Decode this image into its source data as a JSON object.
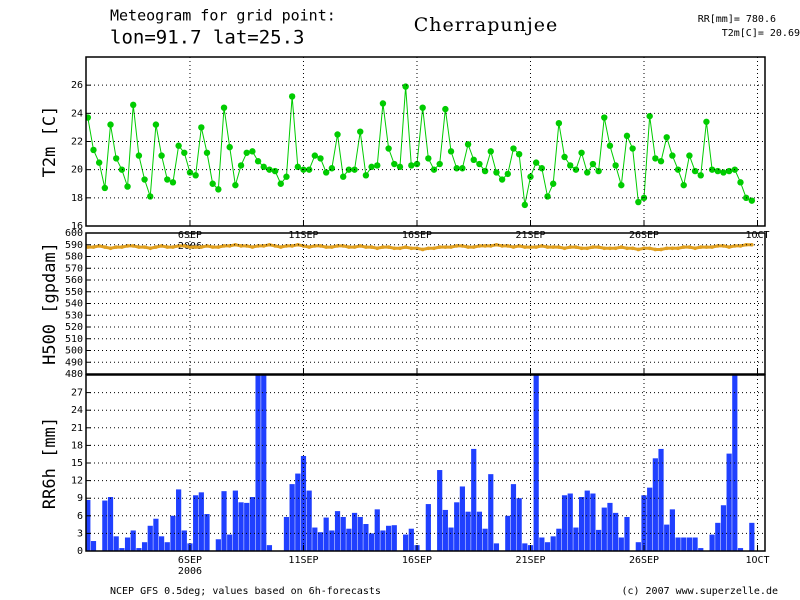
{
  "header": {
    "line1": "Meteogram for grid point:",
    "line2": "lon=91.7  lat=25.3",
    "place": "Cherrapunjee",
    "rr": "RR[mm]= 780.6",
    "t2m": "T2m[C]= 20.69"
  },
  "footer": {
    "left": "NCEP GFS 0.5deg; values based on 6h-forecasts",
    "right": "(c) 2007 www.superzelle.de"
  },
  "time_axis": {
    "xlim": [
      1.42,
      31.33
    ],
    "year": "2006",
    "xticks": [
      {
        "value": 6,
        "label": "6SEP"
      },
      {
        "value": 11,
        "label": "11SEP"
      },
      {
        "value": 16,
        "label": "16SEP"
      },
      {
        "value": 21,
        "label": "21SEP"
      },
      {
        "value": 26,
        "label": "26SEP"
      },
      {
        "value": 31,
        "label": "1OCT"
      }
    ],
    "x": [
      1.5,
      1.75,
      2,
      2.25,
      2.5,
      2.75,
      3,
      3.25,
      3.5,
      3.75,
      4,
      4.25,
      4.5,
      4.75,
      5,
      5.25,
      5.5,
      5.75,
      6,
      6.25,
      6.5,
      6.75,
      7,
      7.25,
      7.5,
      7.75,
      8,
      8.25,
      8.5,
      8.75,
      9,
      9.25,
      9.5,
      9.75,
      10,
      10.25,
      10.5,
      10.75,
      11,
      11.25,
      11.5,
      11.75,
      12,
      12.25,
      12.5,
      12.75,
      13,
      13.25,
      13.5,
      13.75,
      14,
      14.25,
      14.5,
      14.75,
      15,
      15.25,
      15.5,
      15.75,
      16,
      16.25,
      16.5,
      16.75,
      17,
      17.25,
      17.5,
      17.75,
      18,
      18.25,
      18.5,
      18.75,
      19,
      19.25,
      19.5,
      19.75,
      20,
      20.25,
      20.5,
      20.75,
      21,
      21.25,
      21.5,
      21.75,
      22,
      22.25,
      22.5,
      22.75,
      23,
      23.25,
      23.5,
      23.75,
      24,
      24.25,
      24.5,
      24.75,
      25,
      25.25,
      25.5,
      25.75,
      26,
      26.25,
      26.5,
      26.75,
      27,
      27.25,
      27.5,
      27.75,
      28,
      28.25,
      28.5,
      28.75,
      29,
      29.25,
      29.5,
      29.75,
      30,
      30.25,
      30.5,
      30.75
    ]
  },
  "chart_data": [
    {
      "type": "line",
      "ylabel": "T2m [C]",
      "color": "#00cc00",
      "ylim": [
        16,
        28
      ],
      "yticks": [
        16,
        18,
        20,
        22,
        24,
        26
      ],
      "grid": true,
      "values": [
        23.7,
        21.4,
        20.5,
        18.7,
        23.2,
        20.8,
        20.0,
        18.8,
        24.6,
        21.0,
        19.3,
        18.1,
        23.2,
        21.0,
        19.3,
        19.1,
        21.7,
        21.2,
        19.8,
        19.6,
        23.0,
        21.2,
        19.0,
        18.6,
        24.4,
        21.6,
        18.9,
        20.3,
        21.2,
        21.3,
        20.6,
        20.2,
        20.0,
        19.9,
        19.0,
        19.5,
        25.2,
        20.2,
        20.0,
        20.0,
        21.0,
        20.8,
        19.8,
        20.1,
        22.5,
        19.5,
        20.0,
        20.0,
        22.7,
        19.6,
        20.2,
        20.3,
        24.7,
        21.5,
        20.4,
        20.2,
        25.9,
        20.3,
        20.4,
        24.4,
        20.8,
        20.0,
        20.4,
        24.3,
        21.3,
        20.1,
        20.1,
        21.8,
        20.7,
        20.4,
        19.9,
        21.3,
        19.8,
        19.3,
        19.7,
        21.5,
        21.1,
        17.5,
        19.5,
        20.5,
        20.1,
        18.1,
        19.0,
        23.3,
        20.9,
        20.3,
        20.0,
        21.2,
        19.8,
        20.4,
        19.9,
        23.7,
        21.7,
        20.3,
        18.9,
        22.4,
        21.5,
        17.7,
        18.0,
        23.8,
        20.8,
        20.6,
        22.3,
        21.0,
        20.0,
        18.9,
        21.0,
        19.9,
        19.6,
        23.4,
        20.0,
        19.9,
        19.8,
        19.9,
        20.0,
        19.1,
        18.0,
        17.8
      ]
    },
    {
      "type": "dots",
      "ylabel": "H500 [gpdam]",
      "color": "#e0a020",
      "ylim": [
        480,
        600
      ],
      "yticks": [
        480,
        490,
        500,
        510,
        520,
        530,
        540,
        550,
        560,
        570,
        580,
        590,
        600
      ],
      "grid": true,
      "values": [
        588,
        588,
        589,
        588,
        587,
        588,
        588,
        589,
        589,
        588,
        588,
        587,
        588,
        589,
        588,
        588,
        589,
        589,
        588,
        588,
        588,
        589,
        588,
        588,
        589,
        589,
        590,
        589,
        589,
        588,
        589,
        589,
        590,
        589,
        588,
        589,
        589,
        590,
        589,
        588,
        589,
        589,
        588,
        588,
        589,
        589,
        588,
        588,
        589,
        588,
        588,
        587,
        588,
        588,
        587,
        587,
        588,
        587,
        587,
        586,
        587,
        587,
        588,
        588,
        588,
        589,
        589,
        588,
        588,
        589,
        589,
        589,
        590,
        589,
        589,
        588,
        589,
        588,
        588,
        588,
        589,
        588,
        588,
        588,
        587,
        588,
        588,
        587,
        587,
        588,
        588,
        587,
        587,
        587,
        588,
        587,
        587,
        586,
        587,
        587,
        586,
        586,
        587,
        587,
        587,
        588,
        588,
        587,
        588,
        588,
        588,
        589,
        589,
        588,
        589,
        589,
        590,
        590
      ]
    },
    {
      "type": "bar",
      "ylabel": "RR6h [mm]",
      "color": "#2040ff",
      "ylim": [
        0,
        30
      ],
      "yticks": [
        0,
        3,
        6,
        9,
        12,
        15,
        18,
        21,
        24,
        27
      ],
      "grid": true,
      "values": [
        8.7,
        1.7,
        0,
        8.6,
        9.2,
        2.5,
        0.5,
        2.3,
        3.5,
        0.5,
        1.5,
        4.3,
        5.5,
        2.5,
        1.5,
        6.0,
        10.5,
        3.5,
        1.3,
        9.5,
        10.0,
        6.3,
        0,
        2.0,
        10.2,
        2.8,
        10.3,
        8.3,
        8.2,
        9.2,
        30,
        30,
        1.0,
        0,
        0,
        5.8,
        11.4,
        13.2,
        16.2,
        10.3,
        4.0,
        3.2,
        5.7,
        3.5,
        6.8,
        5.8,
        3.8,
        6.5,
        5.8,
        4.6,
        3.0,
        7.1,
        3.5,
        4.3,
        4.4,
        0,
        2.8,
        3.8,
        1.0,
        0,
        8.0,
        0,
        13.8,
        7.0,
        4.0,
        8.3,
        11.0,
        6.7,
        17.4,
        6.7,
        3.8,
        13.1,
        1.3,
        0,
        6.0,
        11.4,
        9.0,
        1.3,
        1.0,
        30,
        2.3,
        1.5,
        2.5,
        3.8,
        9.5,
        9.8,
        4.0,
        9.2,
        10.3,
        9.8,
        3.6,
        7.4,
        8.2,
        6.5,
        2.3,
        5.8,
        0,
        1.5,
        9.5,
        10.8,
        15.8,
        17.4,
        4.5,
        7.1,
        2.3,
        2.3,
        2.3,
        2.3,
        0.5,
        0,
        2.8,
        4.8,
        7.8,
        16.6,
        30,
        0.5,
        0,
        4.8
      ]
    }
  ]
}
